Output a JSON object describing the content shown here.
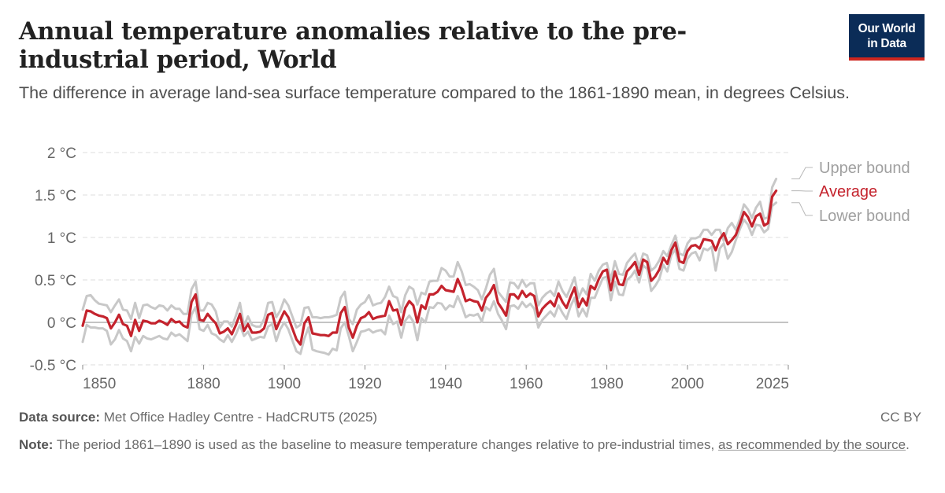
{
  "header": {
    "title": "Annual temperature anomalies relative to the pre-industrial period, World",
    "subtitle": "The difference in average land-sea surface temperature compared to the 1861-1890 mean, in degrees Celsius."
  },
  "logo": {
    "line1": "Our World",
    "line2": "in Data",
    "bg_color": "#0b2c57",
    "accent_color": "#ce261e"
  },
  "footer": {
    "source_label": "Data source:",
    "source_text": "Met Office Hadley Centre - HadCRUT5 (2025)",
    "license": "CC BY",
    "note_label": "Note:",
    "note_text": "The period 1861–1890 is used as the baseline to measure temperature changes relative to pre-industrial times,",
    "note_link": "as recommended by the source",
    "note_end": "."
  },
  "chart_data": {
    "type": "line",
    "title": "Annual temperature anomalies relative to the pre-industrial period, World",
    "ylim": [
      -0.5,
      2
    ],
    "xlim": [
      1850,
      2025
    ],
    "yticks": [
      -0.5,
      0,
      0.5,
      1,
      1.5,
      2
    ],
    "ytick_labels": [
      "-0.5 °C",
      "0 °C",
      "0.5 °C",
      "1 °C",
      "1.5 °C",
      "2 °C"
    ],
    "xticks": [
      1850,
      1880,
      1900,
      1920,
      1940,
      1960,
      1980,
      2000,
      2025
    ],
    "xtick_labels": [
      "1850",
      "1880",
      "1900",
      "1920",
      "1940",
      "1960",
      "1980",
      "2000",
      "2025"
    ],
    "grid": true,
    "legend_placement": "right end labels",
    "colors": {
      "average": "#c4232d",
      "bounds": "#c8c8c8",
      "bounds_label": "#a0a0a0"
    },
    "series": [
      {
        "name": "Upper bound",
        "x_start": 1850,
        "values": [
          0.15,
          0.31,
          0.32,
          0.26,
          0.22,
          0.21,
          0.2,
          0.12,
          0.2,
          0.27,
          0.15,
          0.14,
          0.04,
          0.23,
          0.05,
          0.2,
          0.21,
          0.18,
          0.16,
          0.2,
          0.19,
          0.14,
          0.2,
          0.16,
          0.16,
          0.1,
          0.1,
          0.39,
          0.48,
          0.14,
          0.14,
          0.23,
          0.21,
          0.13,
          -0.06,
          0.01,
          0.01,
          -0.05,
          0.08,
          0.23,
          -0.04,
          0.07,
          -0.03,
          -0.05,
          -0.05,
          0.04,
          0.23,
          0.24,
          0.06,
          0.14,
          0.27,
          0.2,
          0.07,
          -0.06,
          -0.03,
          0.17,
          0.18,
          0.06,
          0.06,
          0.05,
          0.06,
          0.06,
          0.07,
          0.09,
          0.29,
          0.36,
          0.04,
          -0.02,
          0.15,
          0.21,
          0.24,
          0.32,
          0.2,
          0.22,
          0.23,
          0.3,
          0.42,
          0.31,
          0.29,
          0.12,
          0.32,
          0.42,
          0.39,
          0.21,
          0.35,
          0.33,
          0.48,
          0.49,
          0.49,
          0.64,
          0.61,
          0.54,
          0.54,
          0.71,
          0.6,
          0.44,
          0.45,
          0.42,
          0.38,
          0.27,
          0.4,
          0.56,
          0.63,
          0.36,
          0.3,
          0.24,
          0.47,
          0.46,
          0.4,
          0.5,
          0.42,
          0.46,
          0.46,
          0.2,
          0.29,
          0.34,
          0.37,
          0.31,
          0.48,
          0.37,
          0.3,
          0.41,
          0.53,
          0.29,
          0.4,
          0.33,
          0.57,
          0.49,
          0.61,
          0.68,
          0.7,
          0.5,
          0.72,
          0.57,
          0.56,
          0.7,
          0.76,
          0.81,
          0.65,
          0.81,
          0.79,
          0.61,
          0.65,
          0.73,
          0.84,
          0.78,
          0.91,
          1.02,
          0.81,
          0.79,
          0.93,
          0.99,
          0.99,
          1.01,
          1.09,
          1.09,
          1.03,
          1.09,
          1.09,
          0.96,
          1.11,
          1.17,
          1.09,
          1.22,
          1.39,
          1.33,
          1.23,
          1.35,
          1.42,
          1.22,
          1.24,
          1.59,
          1.69
        ]
      },
      {
        "name": "Average",
        "x_start": 1850,
        "values": [
          -0.04,
          0.14,
          0.13,
          0.1,
          0.08,
          0.07,
          0.05,
          -0.07,
          0.0,
          0.09,
          -0.02,
          -0.04,
          -0.16,
          0.03,
          -0.1,
          0.02,
          0.01,
          -0.01,
          -0.01,
          0.02,
          0.0,
          -0.03,
          0.04,
          0.0,
          0.01,
          -0.04,
          -0.06,
          0.24,
          0.33,
          0.03,
          0.02,
          0.1,
          0.04,
          -0.01,
          -0.13,
          -0.11,
          -0.07,
          -0.14,
          -0.03,
          0.1,
          -0.1,
          -0.02,
          -0.12,
          -0.12,
          -0.11,
          -0.07,
          0.09,
          0.11,
          -0.08,
          0.03,
          0.13,
          0.06,
          -0.07,
          -0.2,
          -0.26,
          -0.01,
          0.06,
          -0.13,
          -0.14,
          -0.15,
          -0.15,
          -0.16,
          -0.12,
          -0.12,
          0.11,
          0.18,
          -0.06,
          -0.18,
          -0.04,
          0.05,
          0.07,
          0.12,
          0.04,
          0.06,
          0.07,
          0.08,
          0.25,
          0.14,
          0.15,
          -0.03,
          0.17,
          0.25,
          0.2,
          0.0,
          0.2,
          0.16,
          0.33,
          0.33,
          0.36,
          0.43,
          0.38,
          0.37,
          0.36,
          0.51,
          0.4,
          0.25,
          0.27,
          0.25,
          0.24,
          0.14,
          0.29,
          0.35,
          0.44,
          0.23,
          0.16,
          0.08,
          0.33,
          0.33,
          0.28,
          0.37,
          0.3,
          0.34,
          0.31,
          0.07,
          0.16,
          0.21,
          0.25,
          0.19,
          0.34,
          0.24,
          0.17,
          0.3,
          0.41,
          0.18,
          0.28,
          0.2,
          0.43,
          0.39,
          0.51,
          0.6,
          0.62,
          0.38,
          0.6,
          0.45,
          0.44,
          0.6,
          0.65,
          0.71,
          0.56,
          0.74,
          0.71,
          0.49,
          0.54,
          0.62,
          0.76,
          0.69,
          0.85,
          0.94,
          0.72,
          0.7,
          0.84,
          0.9,
          0.91,
          0.87,
          0.98,
          0.97,
          0.96,
          0.85,
          0.98,
          1.05,
          0.92,
          0.97,
          1.03,
          1.16,
          1.3,
          1.24,
          1.13,
          1.25,
          1.28,
          1.14,
          1.17,
          1.48,
          1.55
        ]
      },
      {
        "name": "Lower bound",
        "x_start": 1850,
        "values": [
          -0.23,
          -0.03,
          -0.06,
          -0.06,
          -0.07,
          -0.07,
          -0.1,
          -0.26,
          -0.2,
          -0.09,
          -0.19,
          -0.22,
          -0.34,
          -0.17,
          -0.25,
          -0.16,
          -0.19,
          -0.2,
          -0.18,
          -0.16,
          -0.19,
          -0.2,
          -0.12,
          -0.16,
          -0.14,
          -0.18,
          -0.22,
          0.09,
          0.18,
          -0.08,
          -0.1,
          -0.03,
          -0.13,
          -0.15,
          -0.2,
          -0.23,
          -0.15,
          -0.23,
          -0.14,
          -0.03,
          -0.16,
          -0.11,
          -0.21,
          -0.19,
          -0.17,
          -0.18,
          -0.05,
          -0.02,
          -0.22,
          -0.08,
          0.0,
          -0.08,
          -0.21,
          -0.34,
          -0.37,
          -0.19,
          -0.06,
          -0.32,
          -0.34,
          -0.35,
          -0.36,
          -0.38,
          -0.31,
          -0.33,
          -0.07,
          0.0,
          -0.16,
          -0.34,
          -0.23,
          -0.11,
          -0.1,
          -0.08,
          -0.12,
          -0.1,
          -0.09,
          -0.14,
          0.08,
          -0.02,
          0.01,
          -0.18,
          0.02,
          0.08,
          0.01,
          -0.21,
          0.05,
          0.0,
          0.18,
          0.17,
          0.23,
          0.22,
          0.15,
          0.2,
          0.18,
          0.31,
          0.2,
          0.06,
          0.09,
          0.08,
          0.1,
          0.01,
          0.18,
          0.14,
          0.25,
          0.1,
          0.02,
          -0.08,
          0.19,
          0.2,
          0.16,
          0.24,
          0.18,
          0.22,
          0.16,
          -0.06,
          0.03,
          0.08,
          0.13,
          0.07,
          0.2,
          0.11,
          0.04,
          0.19,
          0.29,
          0.07,
          0.16,
          0.07,
          0.29,
          0.29,
          0.41,
          0.52,
          0.54,
          0.26,
          0.48,
          0.33,
          0.32,
          0.5,
          0.54,
          0.61,
          0.47,
          0.67,
          0.63,
          0.37,
          0.43,
          0.51,
          0.68,
          0.6,
          0.79,
          0.86,
          0.63,
          0.61,
          0.75,
          0.81,
          0.83,
          0.73,
          0.87,
          0.85,
          0.89,
          0.61,
          0.87,
          0.93,
          0.75,
          0.83,
          0.97,
          1.1,
          1.21,
          1.15,
          1.03,
          1.15,
          1.14,
          1.06,
          1.1,
          1.37,
          1.41
        ]
      }
    ]
  }
}
